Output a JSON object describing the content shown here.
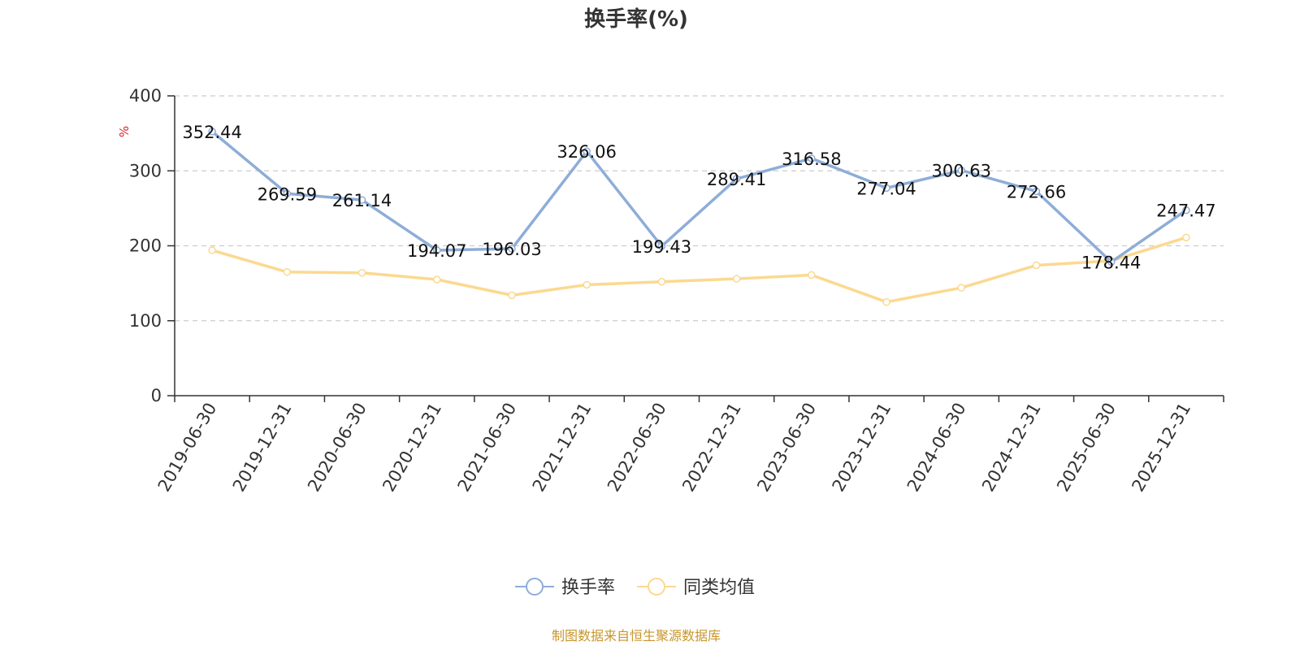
{
  "chart_data": {
    "type": "line",
    "title": "换手率(%)",
    "ylabel": "%",
    "xlabel": "",
    "ylim": [
      0,
      400
    ],
    "yticks": [
      0,
      100,
      200,
      300,
      400
    ],
    "grid": true,
    "legend_position": "bottom",
    "categories": [
      "2019-06-30",
      "2019-12-31",
      "2020-06-30",
      "2020-12-31",
      "2021-06-30",
      "2021-12-31",
      "2022-06-30",
      "2022-12-31",
      "2023-06-30",
      "2023-12-31",
      "2024-06-30",
      "2024-12-31",
      "2025-06-30",
      "2025-12-31"
    ],
    "series": [
      {
        "name": "换手率",
        "color": "#8eadd8",
        "values": [
          352.44,
          269.59,
          261.14,
          194.07,
          196.03,
          326.06,
          199.43,
          289.41,
          316.58,
          277.04,
          300.63,
          272.66,
          178.44,
          247.47
        ],
        "labels": [
          "352.44",
          "269.59",
          "261.14",
          "194.07",
          "196.03",
          "326.06",
          "199.43",
          "289.41",
          "316.58",
          "277.04",
          "300.63",
          "272.66",
          "178.44",
          "247.47"
        ]
      },
      {
        "name": "同类均值",
        "color": "#fbd990",
        "values": [
          194,
          165,
          164,
          155,
          134,
          148,
          152,
          156,
          161,
          125,
          144,
          174,
          180,
          211
        ]
      }
    ],
    "source": "制图数据来自恒生聚源数据库"
  }
}
